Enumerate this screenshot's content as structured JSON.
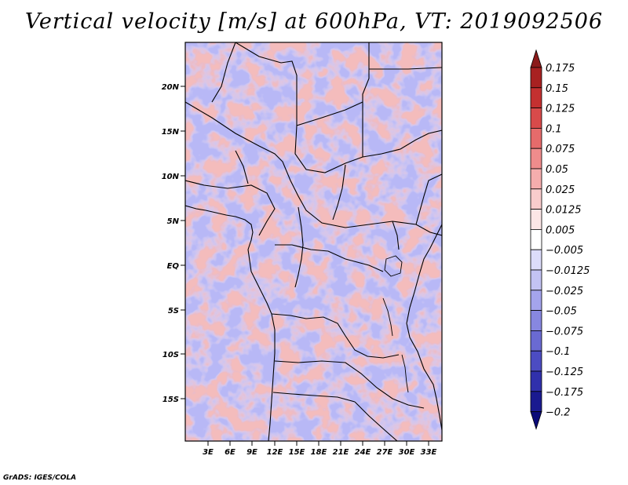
{
  "title": "Vertical velocity [m/s] at 600hPa, VT: 2019092506",
  "credit": "GrADS: IGES/COLA",
  "map": {
    "lat_ticks": [
      "20N",
      "15N",
      "10N",
      "5N",
      "EQ",
      "5S",
      "10S",
      "15S"
    ],
    "lon_ticks": [
      "3E",
      "6E",
      "9E",
      "12E",
      "15E",
      "18E",
      "21E",
      "24E",
      "27E",
      "30E",
      "33E"
    ]
  },
  "colorbar": {
    "labels": [
      "0.175",
      "0.15",
      "0.125",
      "0.1",
      "0.075",
      "0.05",
      "0.025",
      "0.0125",
      "0.005",
      "−0.005",
      "−0.0125",
      "−0.025",
      "−0.05",
      "−0.075",
      "−0.1",
      "−0.125",
      "−0.175",
      "−0.2"
    ],
    "colors": [
      "#8b1a1a",
      "#a82121",
      "#c43030",
      "#d84a4a",
      "#e66b6b",
      "#ef8c8c",
      "#f5adad",
      "#f9cccc",
      "#fce6e6",
      "#ffffff",
      "#dcdcfa",
      "#c3c3f3",
      "#a4a4ec",
      "#8787e0",
      "#6a6ad2",
      "#4c4cc2",
      "#3030ac",
      "#1a1a90",
      "#0a0a78"
    ]
  }
}
